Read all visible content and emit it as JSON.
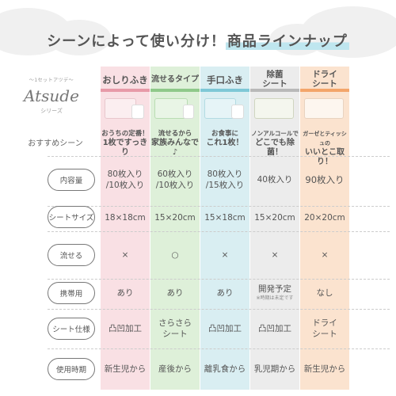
{
  "headline": {
    "before": "シーンによって使い分け！",
    "highlight": "商品ラインナップ"
  },
  "brand": {
    "tagline": "〜1セットアツデ〜",
    "logo": "Atsude",
    "series": "シリーズ"
  },
  "colors": {
    "col1": "#f9e0e4",
    "col2": "#def0d9",
    "col3": "#d9eef2",
    "col4": "#ececec",
    "col5": "#fbe3cf",
    "tab1": "#e79aa8",
    "tab2": "#8fc98a",
    "tab3": "#7ec8d6",
    "tab4": "#b9b9b9",
    "tab5": "#f3a56a"
  },
  "products": [
    {
      "tab": "おしりふき",
      "rec_line1": "おうちの定番！",
      "rec_line2": "1枚ですっきり"
    },
    {
      "tab": "流せるタイプ",
      "rec_line1": "流せるから",
      "rec_line2": "家族みんなで♪"
    },
    {
      "tab": "手口ふき",
      "rec_line1": "お食事に",
      "rec_line2": "これ1枚！"
    },
    {
      "tab": "除菌シート",
      "tab_line1": "除菌",
      "tab_line2": "シート",
      "rec_line1": "ノンアルコールで",
      "rec_line2": "どこでも除菌！"
    },
    {
      "tab": "ドライシート",
      "tab_line1": "ドライ",
      "tab_line2": "シート",
      "rec_line1": "ガーゼとティッシュの",
      "rec_line2": "いいとこ取り！"
    }
  ],
  "rec_label": "おすすめシーン",
  "rows": [
    {
      "label": "内容量",
      "cells": [
        [
          "80枚入り",
          "/10枚入り"
        ],
        [
          "60枚入り",
          "/10枚入り"
        ],
        [
          "80枚入り",
          "/15枚入り"
        ],
        [
          "40枚入り"
        ],
        [
          "90枚入り"
        ]
      ]
    },
    {
      "label": "シートサイズ",
      "cells": [
        [
          "18×18cm"
        ],
        [
          "15×20cm"
        ],
        [
          "15×18cm"
        ],
        [
          "15×20cm"
        ],
        [
          "20×20cm"
        ]
      ]
    },
    {
      "label": "流せる",
      "cells": [
        [
          "×"
        ],
        [
          "○"
        ],
        [
          "×"
        ],
        [
          "×"
        ],
        [
          "×"
        ]
      ]
    },
    {
      "label": "携帯用",
      "cells": [
        [
          "あり"
        ],
        [
          "あり"
        ],
        [
          "あり"
        ],
        [
          "開発予定"
        ],
        [
          "なし"
        ]
      ],
      "note": "※時期は未定です"
    },
    {
      "label": "シート仕様",
      "cells": [
        [
          "凸凹加工"
        ],
        [
          "さらさら",
          "シート"
        ],
        [
          "凸凹加工"
        ],
        [
          "凸凹加工"
        ],
        [
          "ドライ",
          "シート"
        ]
      ]
    },
    {
      "label": "使用時期",
      "cells": [
        [
          "新生児から"
        ],
        [
          "産後から"
        ],
        [
          "離乳食から"
        ],
        [
          "乳児期から"
        ],
        [
          "新生児から"
        ]
      ]
    }
  ]
}
